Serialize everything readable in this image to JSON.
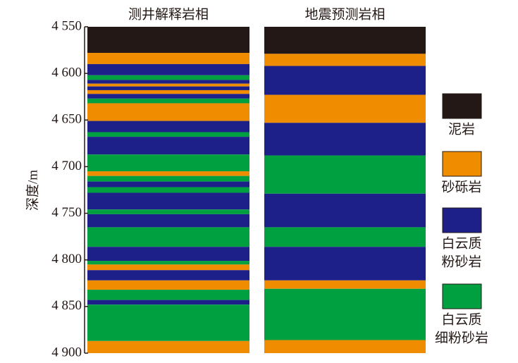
{
  "chart_data": {
    "type": "facies",
    "ylabel": "深度/m",
    "ylim": [
      4550,
      4900
    ],
    "yticks": [
      {
        "value": 4550,
        "label": "4 550"
      },
      {
        "value": 4600,
        "label": "4 600"
      },
      {
        "value": 4650,
        "label": "4 650"
      },
      {
        "value": 4700,
        "label": "4 700"
      },
      {
        "value": 4750,
        "label": "4 750"
      },
      {
        "value": 4800,
        "label": "4 800"
      },
      {
        "value": 4850,
        "label": "4 850"
      },
      {
        "value": 4900,
        "label": "4 900"
      }
    ],
    "facies": [
      {
        "name_lines": [
          "泥岩"
        ],
        "color": "#231815"
      },
      {
        "name_lines": [
          "砂砾岩"
        ],
        "color": "#f08c00"
      },
      {
        "name_lines": [
          "白云质",
          "粉砂岩"
        ],
        "color": "#1d2088"
      },
      {
        "name_lines": [
          "白云质",
          "细粉砂岩"
        ],
        "color": "#00a040"
      }
    ],
    "columns": [
      {
        "title": "测井解释岩相",
        "intervals": [
          {
            "top": 4550,
            "bottom": 4578,
            "facies": 0
          },
          {
            "top": 4578,
            "bottom": 4590,
            "facies": 1
          },
          {
            "top": 4590,
            "bottom": 4602,
            "facies": 2
          },
          {
            "top": 4602,
            "bottom": 4607,
            "facies": 3
          },
          {
            "top": 4607,
            "bottom": 4611,
            "facies": 2
          },
          {
            "top": 4611,
            "bottom": 4614,
            "facies": 1
          },
          {
            "top": 4614,
            "bottom": 4618,
            "facies": 2
          },
          {
            "top": 4618,
            "bottom": 4622,
            "facies": 1
          },
          {
            "top": 4622,
            "bottom": 4627,
            "facies": 2
          },
          {
            "top": 4627,
            "bottom": 4632,
            "facies": 3
          },
          {
            "top": 4632,
            "bottom": 4651,
            "facies": 1
          },
          {
            "top": 4651,
            "bottom": 4663,
            "facies": 2
          },
          {
            "top": 4663,
            "bottom": 4668,
            "facies": 3
          },
          {
            "top": 4668,
            "bottom": 4687,
            "facies": 2
          },
          {
            "top": 4687,
            "bottom": 4705,
            "facies": 3
          },
          {
            "top": 4705,
            "bottom": 4710,
            "facies": 1
          },
          {
            "top": 4710,
            "bottom": 4716,
            "facies": 3
          },
          {
            "top": 4716,
            "bottom": 4722,
            "facies": 2
          },
          {
            "top": 4722,
            "bottom": 4728,
            "facies": 3
          },
          {
            "top": 4728,
            "bottom": 4746,
            "facies": 2
          },
          {
            "top": 4746,
            "bottom": 4751,
            "facies": 3
          },
          {
            "top": 4751,
            "bottom": 4765,
            "facies": 2
          },
          {
            "top": 4765,
            "bottom": 4786,
            "facies": 3
          },
          {
            "top": 4786,
            "bottom": 4801,
            "facies": 2
          },
          {
            "top": 4801,
            "bottom": 4805,
            "facies": 3
          },
          {
            "top": 4805,
            "bottom": 4811,
            "facies": 1
          },
          {
            "top": 4811,
            "bottom": 4822,
            "facies": 2
          },
          {
            "top": 4822,
            "bottom": 4832,
            "facies": 1
          },
          {
            "top": 4832,
            "bottom": 4843,
            "facies": 3
          },
          {
            "top": 4843,
            "bottom": 4848,
            "facies": 2
          },
          {
            "top": 4848,
            "bottom": 4887,
            "facies": 3
          },
          {
            "top": 4887,
            "bottom": 4900,
            "facies": 1
          }
        ]
      },
      {
        "title": "地震预测岩相",
        "intervals": [
          {
            "top": 4550,
            "bottom": 4579,
            "facies": 0
          },
          {
            "top": 4579,
            "bottom": 4592,
            "facies": 1
          },
          {
            "top": 4592,
            "bottom": 4623,
            "facies": 2
          },
          {
            "top": 4623,
            "bottom": 4653,
            "facies": 1
          },
          {
            "top": 4653,
            "bottom": 4688,
            "facies": 2
          },
          {
            "top": 4688,
            "bottom": 4729,
            "facies": 3
          },
          {
            "top": 4729,
            "bottom": 4765,
            "facies": 2
          },
          {
            "top": 4765,
            "bottom": 4786,
            "facies": 3
          },
          {
            "top": 4786,
            "bottom": 4822,
            "facies": 2
          },
          {
            "top": 4822,
            "bottom": 4831,
            "facies": 1
          },
          {
            "top": 4831,
            "bottom": 4886,
            "facies": 3
          },
          {
            "top": 4886,
            "bottom": 4900,
            "facies": 1
          }
        ]
      }
    ]
  }
}
